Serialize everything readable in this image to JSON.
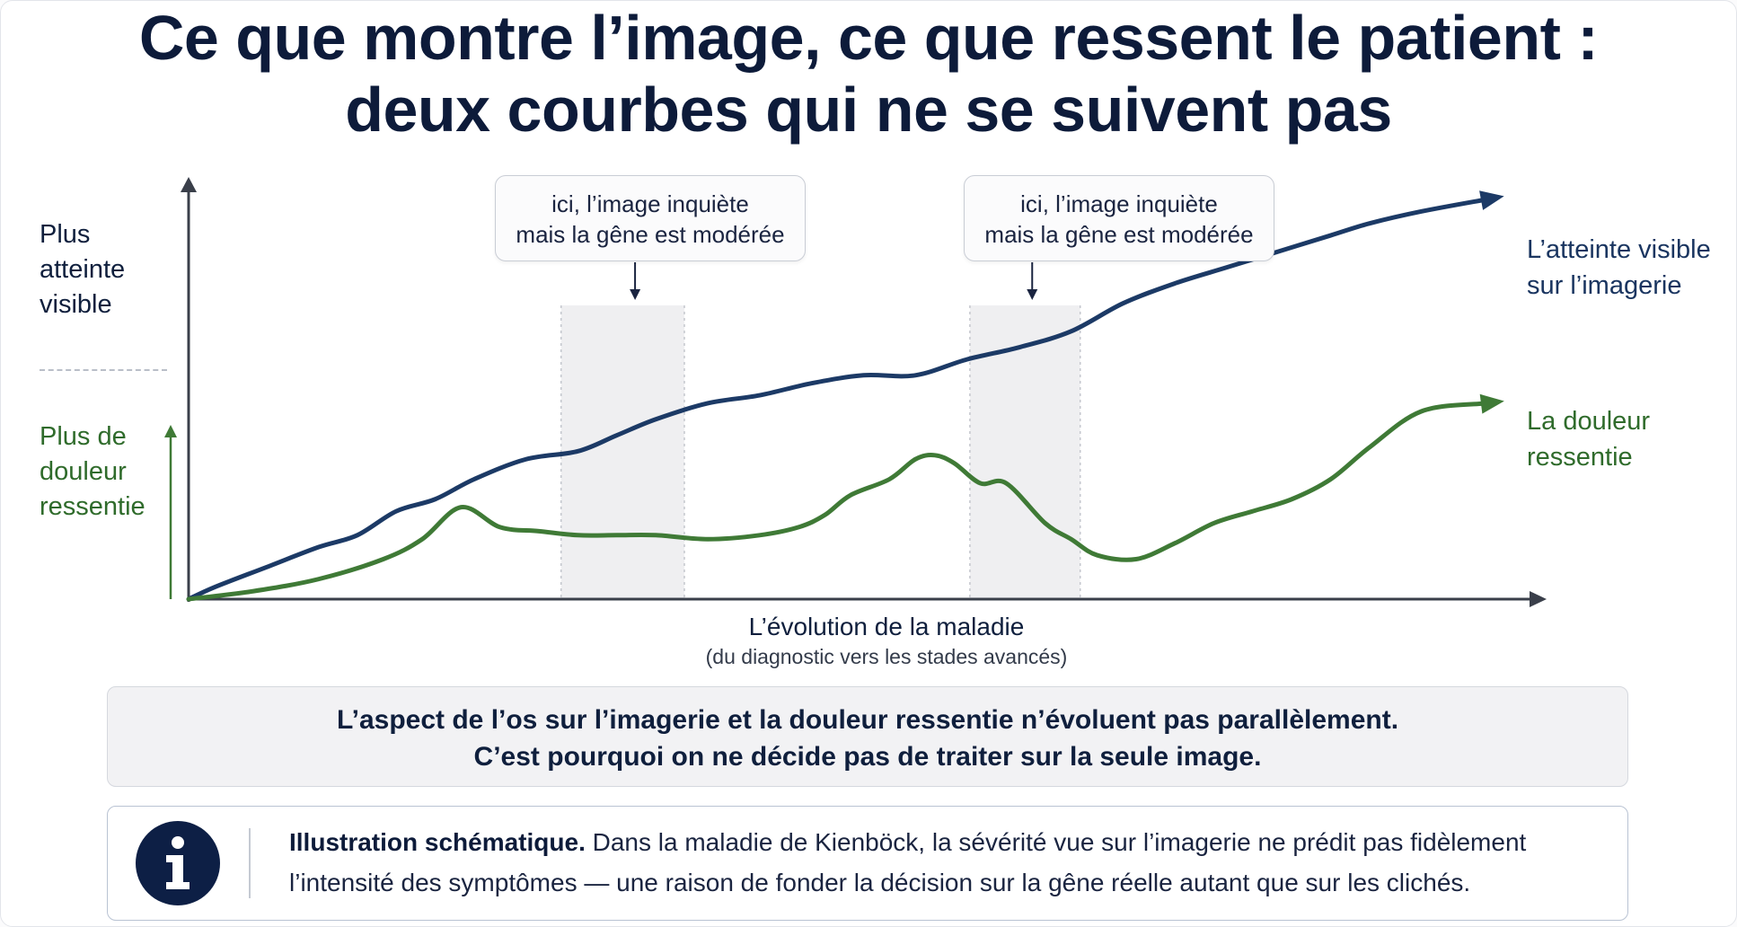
{
  "title": {
    "line1": "Ce que montre l’image, ce que ressent le patient :",
    "line2": "deux courbes qui ne se suivent pas"
  },
  "colors": {
    "blue_series": "#1c3a66",
    "green_series": "#3f7a36",
    "title": "#0d1b3a",
    "highlight_band": "#efeff1"
  },
  "chart_data": {
    "type": "line",
    "x_range": [
      0,
      100
    ],
    "y_range": [
      0,
      100
    ],
    "y_labels": {
      "upper": [
        "Plus",
        "atteinte",
        "visible"
      ],
      "lower": [
        "Plus de",
        "douleur",
        "ressentie"
      ]
    },
    "xlabel": "L’évolution de la maladie",
    "xlabel_sub": "(du diagnostic vers les stades avancés)",
    "callouts": [
      {
        "line1": "ici, l’image inquiète",
        "line2": "mais la gêne est modérée",
        "x": 34.4,
        "band": [
          28.7,
          38.2
        ]
      },
      {
        "line1": "ici, l’image inquiète",
        "line2": "mais la gêne est modérée",
        "x": 65.0,
        "band": [
          60.2,
          68.7
        ]
      }
    ],
    "series": [
      {
        "name": "L’atteinte visible sur l’imagerie",
        "label_lines": [
          "L’atteinte visible",
          "sur l’imagerie"
        ],
        "color": "#1c3a66",
        "x": [
          0,
          2,
          6,
          10,
          13,
          16,
          19,
          22,
          26,
          30,
          33,
          36,
          40,
          44,
          48,
          52,
          56,
          60,
          64,
          68,
          72,
          76,
          80,
          84,
          88,
          91,
          95,
          100
        ],
        "y": [
          0,
          3,
          8,
          13,
          16,
          22,
          25,
          30,
          35,
          37,
          41,
          45,
          49,
          51,
          54,
          56,
          56,
          60,
          63,
          67,
          74,
          79,
          83,
          87,
          91,
          94,
          97,
          100
        ]
      },
      {
        "name": "La douleur ressentie",
        "label_lines": [
          "La douleur",
          "ressentie"
        ],
        "color": "#3f7a36",
        "x": [
          0,
          5,
          10,
          15,
          18,
          21,
          24,
          27,
          30,
          33,
          36,
          40,
          44,
          47,
          49,
          51,
          54,
          56,
          57.5,
          59,
          61,
          63,
          66,
          68,
          70,
          73,
          76,
          79,
          82,
          85,
          88,
          91,
          95,
          100
        ],
        "y": [
          0,
          2,
          5,
          10,
          15,
          23,
          18,
          17,
          16,
          16,
          16,
          15,
          16,
          18,
          21,
          26,
          30,
          35,
          36,
          34,
          29,
          29,
          19,
          15,
          11,
          10,
          14,
          19,
          22,
          25,
          30,
          38,
          47,
          49
        ]
      }
    ]
  },
  "summary": {
    "line1": "L’aspect de l’os sur l’imagerie et la douleur ressentie n’évoluent pas parallèlement.",
    "line2": "C’est pourquoi on ne décide pas de traiter sur la seule image."
  },
  "info": {
    "icon": "info-icon",
    "bold": "Illustration schématique.",
    "text_line1": " Dans la maladie de Kienböck, la sévérité vue sur l’imagerie ne prédit pas fidèlement",
    "text_line2": "l’intensité des symptômes — une raison de fonder la décision sur la gêne réelle autant que sur les clichés."
  }
}
